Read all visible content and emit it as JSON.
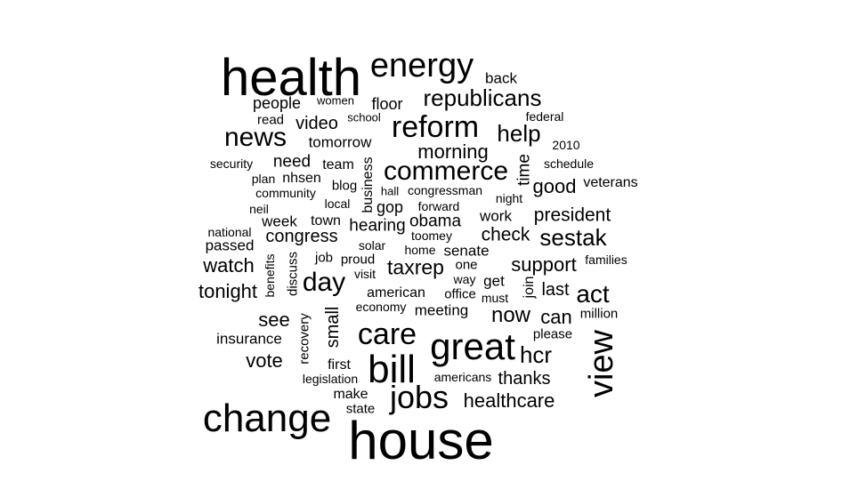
{
  "cloud": {
    "text_color": "#000000",
    "background": "#ffffff",
    "words": [
      "health",
      "energy",
      "back",
      "republicans",
      "women",
      "people",
      "floor",
      "read",
      "school",
      "video",
      "federal",
      "reform",
      "news",
      "help",
      "tomorrow",
      "2010",
      "morning",
      "security",
      "need",
      "team",
      "commerce",
      "time",
      "schedule",
      "plan",
      "nhsen",
      "blog",
      "good",
      "veterans",
      "business",
      "congressman",
      "community",
      "hall",
      "night",
      "local",
      "neil",
      "gop",
      "forward",
      "week",
      "town",
      "work",
      "president",
      "obama",
      "national",
      "hearing",
      "toomey",
      "congress",
      "check",
      "sestak",
      "passed",
      "solar",
      "home",
      "watch",
      "senate",
      "benefits",
      "families",
      "job",
      "proud",
      "taxrep",
      "support",
      "discuss",
      "one",
      "day",
      "visit",
      "way",
      "get",
      "join",
      "last",
      "act",
      "tonight",
      "american",
      "office",
      "must",
      "economy",
      "meeting",
      "see",
      "now",
      "can",
      "million",
      "small",
      "recovery",
      "care",
      "insurance",
      "great",
      "please",
      "view",
      "vote",
      "first",
      "bill",
      "hcr",
      "legislation",
      "americans",
      "thanks",
      "jobs",
      "make",
      "healthcare",
      "state",
      "change",
      "house"
    ]
  }
}
